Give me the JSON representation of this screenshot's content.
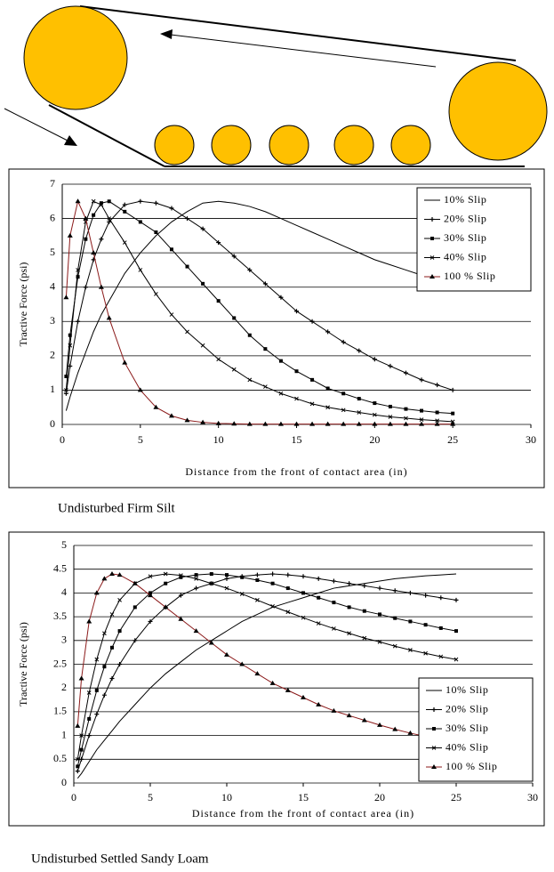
{
  "chart_data": [
    {
      "type": "line",
      "caption": "Undisturbed Firm Silt",
      "x_label": "Distance from the front of contact area (in)",
      "y_label": "Tractive Force (psi)",
      "x": [
        0.25,
        0.5,
        1,
        1.5,
        2,
        2.5,
        3,
        4,
        5,
        6,
        7,
        8,
        9,
        10,
        11,
        12,
        13,
        14,
        15,
        16,
        17,
        18,
        19,
        20,
        21,
        22,
        23,
        24,
        25
      ],
      "xlim": [
        0,
        30
      ],
      "xticks": [
        0,
        5,
        10,
        15,
        20,
        25,
        30
      ],
      "ylim": [
        0,
        7
      ],
      "yticks": [
        0,
        1,
        2,
        3,
        4,
        5,
        6,
        7
      ],
      "grid": true,
      "legend": "upper right",
      "series": [
        {
          "name": "10% Slip",
          "color": "#000000",
          "marker": "none",
          "values": [
            0.4,
            0.8,
            1.5,
            2.1,
            2.7,
            3.2,
            3.6,
            4.4,
            5.0,
            5.5,
            5.9,
            6.2,
            6.45,
            6.5,
            6.45,
            6.35,
            6.2,
            6.0,
            5.8,
            5.6,
            5.4,
            5.2,
            5.0,
            4.8,
            4.65,
            4.5,
            4.35,
            4.2,
            4.1
          ]
        },
        {
          "name": "20% Slip",
          "color": "#000000",
          "marker": "plus",
          "values": [
            0.9,
            1.7,
            3.0,
            4.0,
            4.8,
            5.4,
            5.9,
            6.4,
            6.5,
            6.45,
            6.3,
            6.0,
            5.7,
            5.3,
            4.9,
            4.5,
            4.1,
            3.7,
            3.3,
            3.0,
            2.7,
            2.4,
            2.15,
            1.9,
            1.7,
            1.5,
            1.3,
            1.15,
            1.0
          ]
        },
        {
          "name": "30% Slip",
          "color": "#000000",
          "marker": "square",
          "values": [
            1.4,
            2.6,
            4.3,
            5.4,
            6.1,
            6.45,
            6.5,
            6.2,
            5.9,
            5.6,
            5.1,
            4.6,
            4.1,
            3.6,
            3.1,
            2.6,
            2.2,
            1.85,
            1.55,
            1.3,
            1.05,
            0.9,
            0.75,
            0.62,
            0.52,
            0.45,
            0.4,
            0.35,
            0.32
          ]
        },
        {
          "name": "40% Slip",
          "color": "#000000",
          "marker": "x",
          "values": [
            1.0,
            2.3,
            4.5,
            5.9,
            6.5,
            6.4,
            6.0,
            5.3,
            4.5,
            3.8,
            3.2,
            2.7,
            2.3,
            1.9,
            1.6,
            1.3,
            1.1,
            0.9,
            0.75,
            0.6,
            0.5,
            0.42,
            0.35,
            0.28,
            0.22,
            0.18,
            0.14,
            0.11,
            0.08
          ]
        },
        {
          "name": "100 % Slip",
          "color": "#8b1a1a",
          "marker": "triangle",
          "values": [
            3.7,
            5.5,
            6.5,
            6.0,
            5.0,
            4.0,
            3.1,
            1.8,
            1.0,
            0.5,
            0.25,
            0.12,
            0.06,
            0.03,
            0.02,
            0.01,
            0.01,
            0.01,
            0.01,
            0.01,
            0.01,
            0.01,
            0.01,
            0.01,
            0.01,
            0.01,
            0.01,
            0.01,
            0.01
          ]
        }
      ]
    },
    {
      "type": "line",
      "caption": "Undisturbed Settled Sandy Loam",
      "x_label": "Distance from the front of contact area (in)",
      "y_label": "Tractive Force (psi)",
      "x": [
        0.25,
        0.5,
        1,
        1.5,
        2,
        2.5,
        3,
        4,
        5,
        6,
        7,
        8,
        9,
        10,
        11,
        12,
        13,
        14,
        15,
        16,
        17,
        18,
        19,
        20,
        21,
        22,
        23,
        24,
        25
      ],
      "xlim": [
        0,
        30
      ],
      "xticks": [
        0,
        5,
        10,
        15,
        20,
        25,
        30
      ],
      "ylim": [
        0,
        5
      ],
      "yticks": [
        0,
        0.5,
        1,
        1.5,
        2,
        2.5,
        3,
        3.5,
        4,
        4.5,
        5
      ],
      "grid": true,
      "legend": "lower right",
      "series": [
        {
          "name": "10% Slip",
          "color": "#000000",
          "marker": "none",
          "values": [
            0.1,
            0.2,
            0.45,
            0.7,
            0.9,
            1.1,
            1.3,
            1.65,
            2.0,
            2.3,
            2.55,
            2.8,
            3.0,
            3.2,
            3.4,
            3.55,
            3.7,
            3.8,
            3.9,
            4.0,
            4.1,
            4.15,
            4.2,
            4.25,
            4.3,
            4.33,
            4.36,
            4.38,
            4.4
          ]
        },
        {
          "name": "20% Slip",
          "color": "#000000",
          "marker": "plus",
          "values": [
            0.25,
            0.5,
            1.0,
            1.45,
            1.85,
            2.2,
            2.5,
            3.0,
            3.4,
            3.7,
            3.95,
            4.1,
            4.2,
            4.3,
            4.35,
            4.38,
            4.4,
            4.38,
            4.35,
            4.3,
            4.25,
            4.2,
            4.15,
            4.1,
            4.05,
            4.0,
            3.95,
            3.9,
            3.85
          ]
        },
        {
          "name": "30% Slip",
          "color": "#000000",
          "marker": "square",
          "values": [
            0.35,
            0.7,
            1.35,
            1.95,
            2.45,
            2.85,
            3.2,
            3.7,
            4.0,
            4.2,
            4.33,
            4.38,
            4.4,
            4.38,
            4.33,
            4.27,
            4.2,
            4.1,
            4.0,
            3.9,
            3.8,
            3.7,
            3.62,
            3.55,
            3.47,
            3.4,
            3.33,
            3.26,
            3.2
          ]
        },
        {
          "name": "40% Slip",
          "color": "#000000",
          "marker": "x",
          "values": [
            0.5,
            1.0,
            1.9,
            2.6,
            3.15,
            3.55,
            3.85,
            4.2,
            4.35,
            4.4,
            4.37,
            4.3,
            4.2,
            4.1,
            3.98,
            3.85,
            3.72,
            3.6,
            3.48,
            3.36,
            3.25,
            3.15,
            3.05,
            2.97,
            2.88,
            2.8,
            2.73,
            2.66,
            2.6
          ]
        },
        {
          "name": "100 % Slip",
          "color": "#8b1a1a",
          "marker": "triangle",
          "values": [
            1.2,
            2.2,
            3.4,
            4.0,
            4.3,
            4.4,
            4.38,
            4.2,
            3.95,
            3.7,
            3.45,
            3.2,
            2.95,
            2.7,
            2.5,
            2.3,
            2.1,
            1.95,
            1.8,
            1.65,
            1.52,
            1.42,
            1.32,
            1.22,
            1.13,
            1.05,
            0.98,
            0.9,
            0.85
          ]
        }
      ]
    }
  ]
}
